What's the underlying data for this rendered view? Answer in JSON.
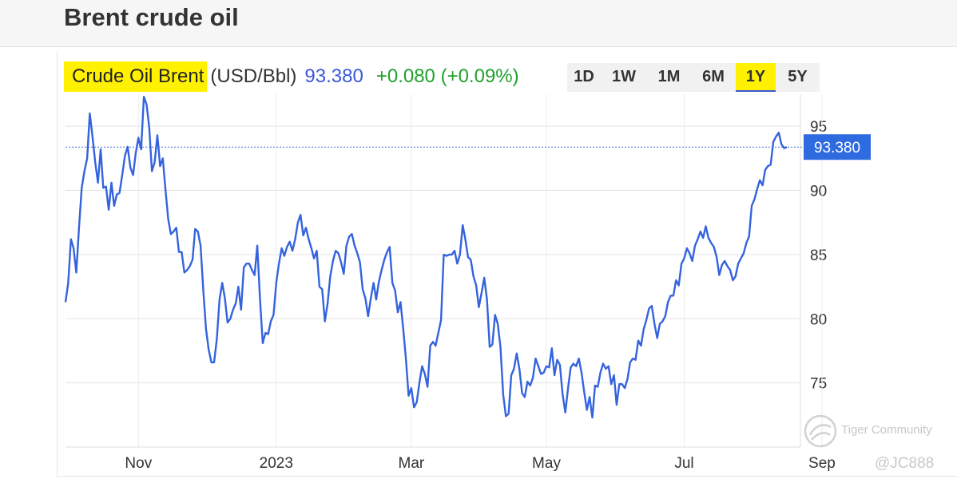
{
  "page": {
    "title": "Brent crude oil"
  },
  "quote": {
    "name": "Crude Oil Brent",
    "unit": "(USD/Bbl)",
    "price": "93.380",
    "change": "+0.080 (+0.09%)"
  },
  "range_tabs": [
    "1D",
    "1W",
    "1M",
    "6M",
    "1Y",
    "5Y"
  ],
  "active_range": "1Y",
  "watermark": {
    "brand": "Tiger Community",
    "user": "@JC888"
  },
  "colors": {
    "line": "#3463dd",
    "highlight": "#fff100",
    "price": "#3a57d8",
    "change": "#1fa12e"
  },
  "chart_data": {
    "type": "line",
    "title": "",
    "xlabel": "",
    "ylabel": "",
    "x_ticks": [
      "Nov",
      "2023",
      "Mar",
      "May",
      "Jul",
      "Sep"
    ],
    "x_tick_index": [
      27,
      78,
      128,
      178,
      229,
      280
    ],
    "y_ticks": [
      75,
      80,
      85,
      90,
      95
    ],
    "ylim": [
      70,
      97.5
    ],
    "grid": true,
    "current_value_label": "93.380",
    "current_value": 93.38,
    "series": [
      {
        "values": [
          81.3,
          82.8,
          86.2,
          85.5,
          83.6,
          87.1,
          90.2,
          91.5,
          92.5,
          96,
          94.2,
          92.2,
          90.6,
          93.2,
          90.2,
          90.3,
          88.5,
          90.6,
          88.8,
          89.7,
          89.8,
          91.2,
          92.7,
          93.4,
          91.8,
          91.2,
          92.9,
          94.1,
          93.2,
          97.3,
          96.7,
          94.9,
          91.5,
          92.2,
          94.3,
          91.9,
          92.5,
          90.1,
          87.8,
          86.6,
          86.8,
          87.1,
          85.2,
          85.2,
          83.6,
          83.8,
          84.1,
          84.6,
          87,
          86.8,
          85.7,
          82.2,
          79.2,
          77.6,
          76.6,
          76.6,
          78.4,
          81.5,
          82.8,
          81.6,
          79.7,
          80,
          80.7,
          81.2,
          82.5,
          80.7,
          84,
          84.3,
          84.3,
          83.8,
          83.4,
          85.7,
          81.5,
          78.1,
          78.9,
          78.8,
          79.8,
          80.3,
          82.8,
          84.3,
          85.5,
          84.9,
          85.6,
          86,
          85.3,
          86.2,
          87.5,
          88.1,
          86.5,
          87.1,
          86.2,
          85.5,
          84.7,
          85.3,
          82.5,
          82.3,
          79.8,
          81.2,
          83.3,
          84.5,
          85.3,
          85.1,
          84.4,
          83.5,
          85.7,
          86.4,
          86.6,
          85.7,
          85.1,
          84.4,
          82.3,
          81.6,
          80.2,
          81.6,
          82.8,
          81.5,
          82.9,
          83.8,
          84.6,
          85.2,
          85.6,
          82.8,
          82.2,
          80.5,
          81.3,
          79.2,
          76.9,
          74,
          74.6,
          73.1,
          73.5,
          75,
          76.3,
          75.7,
          74.7,
          77.9,
          78.2,
          77.9,
          78.9,
          79.9,
          85,
          84.9,
          85,
          85,
          85.3,
          84.3,
          85,
          87.3,
          86.2,
          84.8,
          84.6,
          83.3,
          82.6,
          80.9,
          82,
          83.2,
          81.5,
          77.8,
          78,
          80.3,
          79.6,
          77.8,
          74.1,
          72.4,
          72.6,
          75.6,
          76.1,
          77.3,
          76.1,
          74.2,
          73.9,
          75.1,
          74.8,
          75.4,
          76.9,
          76.3,
          75.7,
          75.8,
          76.3,
          76.2,
          77.7,
          75.6,
          76.8,
          76.4,
          74.1,
          72.7,
          74.6,
          76.2,
          76.5,
          76.3,
          76.9,
          75.8,
          74.3,
          72.9,
          73.9,
          72.3,
          74.8,
          74.7,
          75.8,
          76.5,
          76.1,
          76.3,
          74.9,
          75.6,
          73.3,
          74.9,
          74.9,
          74.6,
          75.3,
          76.6,
          76.9,
          76.8,
          78.3,
          77.9,
          79.2,
          79.9,
          80.8,
          81,
          79.6,
          78.5,
          79.6,
          79.8,
          80.2,
          81.3,
          81.8,
          81.8,
          83,
          82.6,
          84.3,
          84.7,
          85.5,
          85.1,
          84.5,
          85.7,
          86.2,
          86.8,
          86.3,
          87.2,
          86.3,
          85.9,
          85.6,
          84.8,
          83.4,
          84.2,
          84.5,
          84.1,
          83.8,
          83,
          83.3,
          84.3,
          84.7,
          85.1,
          85.9,
          86.4,
          88.8,
          89.3,
          90.1,
          90.8,
          90.4,
          91.6,
          91.9,
          92,
          93.8,
          94.2,
          94.5,
          93.6,
          93.3,
          93.38
        ]
      }
    ]
  }
}
